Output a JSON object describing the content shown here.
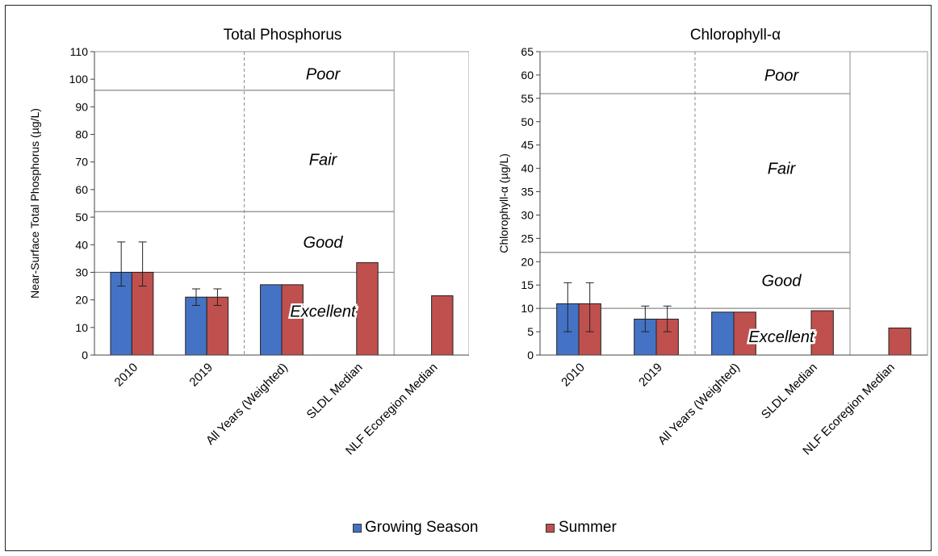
{
  "colors": {
    "growing": "#4472C4",
    "summer": "#C0504D"
  },
  "legend": {
    "growing_label": "Growing Season",
    "summer_label": "Summer"
  },
  "chart_data": [
    {
      "type": "bar",
      "title": "Total Phosphorus",
      "ylabel": "Near-Surface  Total Phosphorus  (µg/L)",
      "xlabel": "",
      "ylim": [
        0,
        110
      ],
      "yticks": [
        0,
        10,
        20,
        30,
        40,
        50,
        60,
        70,
        80,
        90,
        100,
        110
      ],
      "categories": [
        "2010",
        "2019",
        "All Years (Weighted)",
        "SLDL Median",
        "NLF Ecoregion Median"
      ],
      "series": [
        {
          "name": "Growing Season",
          "values": [
            30,
            21,
            25.5,
            null,
            null
          ],
          "errors": [
            [
              25,
              41
            ],
            [
              18,
              24
            ],
            null,
            null,
            null
          ]
        },
        {
          "name": "Summer",
          "values": [
            30,
            21,
            25.5,
            33.5,
            21.5
          ],
          "errors": [
            [
              25,
              41
            ],
            [
              18,
              24
            ],
            null,
            null,
            null
          ]
        }
      ],
      "zones": [
        {
          "label": "Poor",
          "y": 102
        },
        {
          "label": "Fair",
          "y": 71
        },
        {
          "label": "Good",
          "y": 41
        },
        {
          "label": "Excellent",
          "y": 16
        }
      ],
      "thresholds": [
        30,
        52,
        96
      ]
    },
    {
      "type": "bar",
      "title": "Chlorophyll-α",
      "ylabel": "Chlorophyll-α  (µg/L)",
      "xlabel": "",
      "ylim": [
        0,
        65
      ],
      "yticks": [
        0,
        5,
        10,
        15,
        20,
        25,
        30,
        35,
        40,
        45,
        50,
        55,
        60,
        65
      ],
      "categories": [
        "2010",
        "2019",
        "All Years (Weighted)",
        "SLDL Median",
        "NLF Ecoregion Median"
      ],
      "series": [
        {
          "name": "Growing Season",
          "values": [
            11,
            7.7,
            9.2,
            null,
            null
          ],
          "errors": [
            [
              5,
              15.5
            ],
            [
              5,
              10.5
            ],
            null,
            null,
            null
          ]
        },
        {
          "name": "Summer",
          "values": [
            11,
            7.7,
            9.2,
            9.5,
            5.8
          ],
          "errors": [
            [
              5,
              15.5
            ],
            [
              5,
              10.5
            ],
            null,
            null,
            null
          ]
        }
      ],
      "zones": [
        {
          "label": "Poor",
          "y": 60
        },
        {
          "label": "Fair",
          "y": 40
        },
        {
          "label": "Good",
          "y": 16
        },
        {
          "label": "Excellent",
          "y": 4
        }
      ],
      "thresholds": [
        10,
        22,
        56
      ]
    }
  ]
}
